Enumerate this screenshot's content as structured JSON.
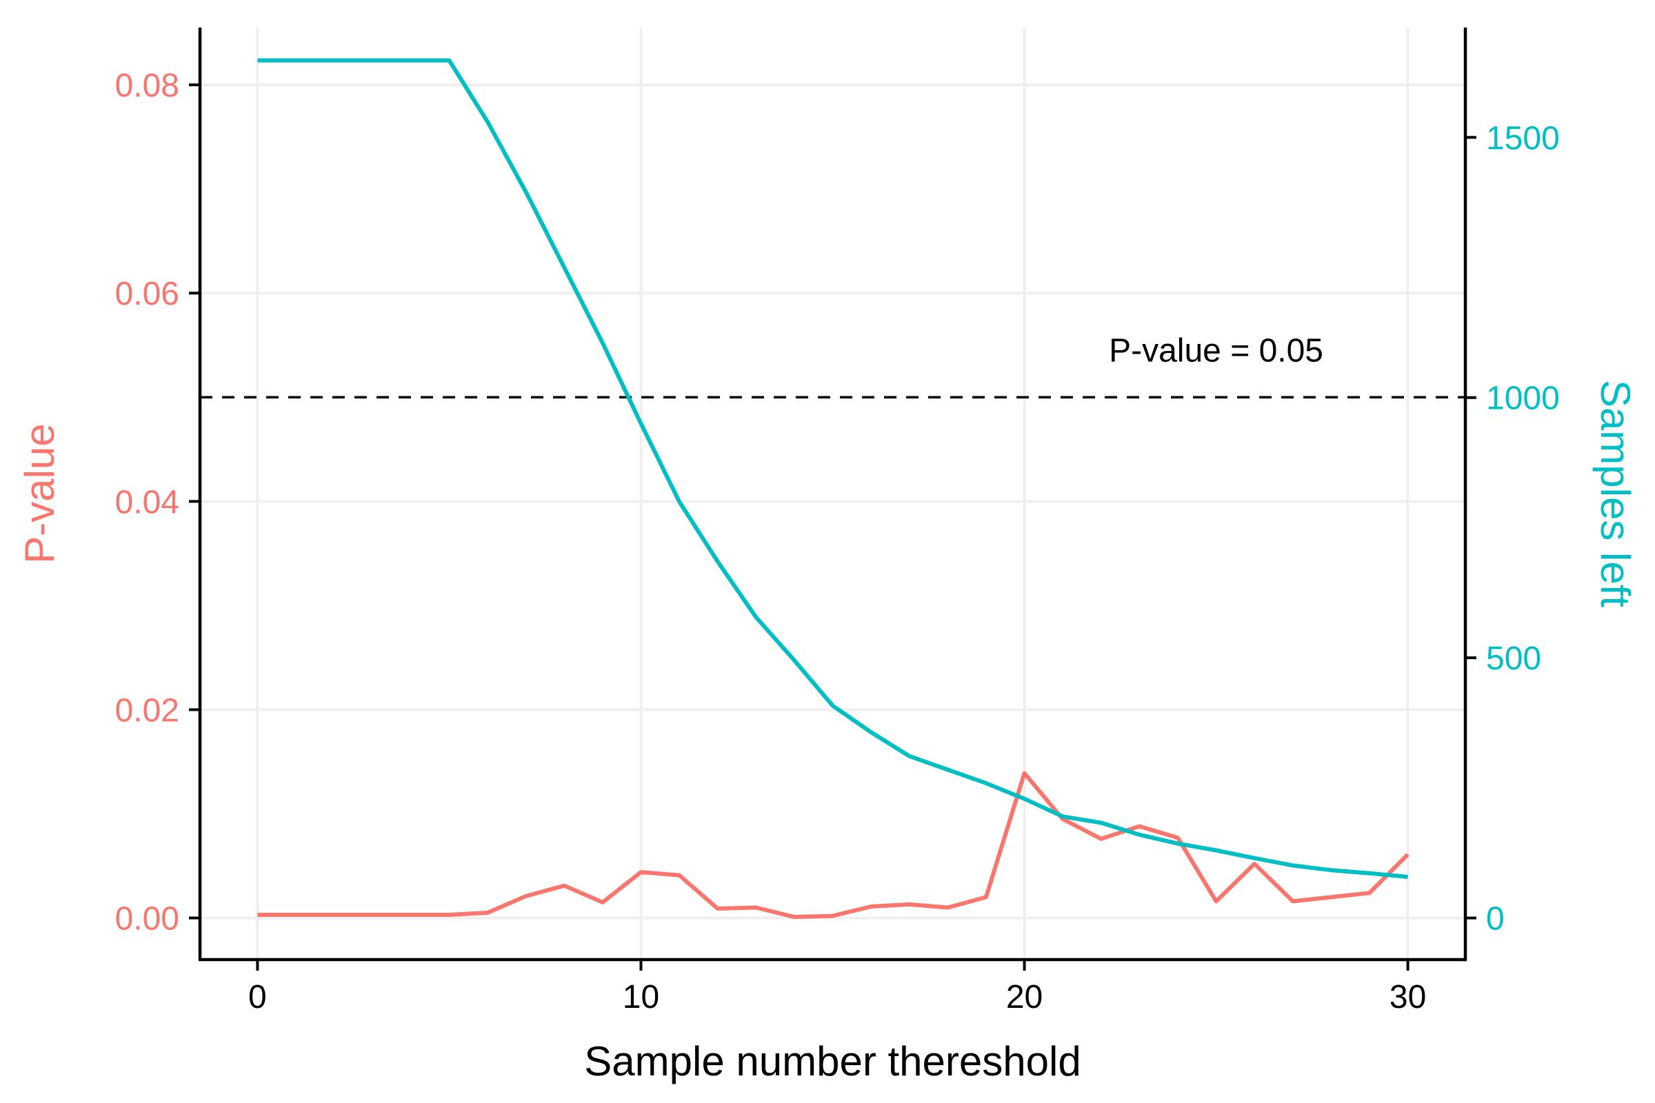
{
  "chart_data": {
    "type": "line",
    "title": "",
    "xlabel": "Sample number thereshold",
    "ylabel": "P-value",
    "y2label": "Samples left",
    "xlim": [
      -1.5,
      31.5
    ],
    "ylim": [
      -0.004,
      0.0855
    ],
    "y2lim": [
      -80,
      1711
    ],
    "x_ticks": [
      0,
      10,
      20,
      30
    ],
    "y_ticks": [
      0.0,
      0.02,
      0.04,
      0.06,
      0.08
    ],
    "y_tick_labels": [
      "0.00",
      "0.02",
      "0.04",
      "0.06",
      "0.08"
    ],
    "y2_ticks": [
      0,
      500,
      1000,
      1500
    ],
    "y2_tick_labels": [
      "0",
      "500",
      "1000",
      "1500"
    ],
    "grid": true,
    "x": [
      0,
      1,
      2,
      3,
      4,
      5,
      6,
      7,
      8,
      9,
      10,
      11,
      12,
      13,
      14,
      15,
      16,
      17,
      18,
      19,
      20,
      21,
      22,
      23,
      24,
      25,
      26,
      27,
      28,
      29,
      30
    ],
    "series": [
      {
        "name": "P-value",
        "axis": "left",
        "color": "#F8766D",
        "values": [
          0.0003,
          0.0003,
          0.0003,
          0.0003,
          0.0003,
          0.0003,
          0.0005,
          0.0021,
          0.0031,
          0.0015,
          0.0044,
          0.0041,
          0.0009,
          0.001,
          0.0001,
          0.0002,
          0.0011,
          0.0013,
          0.001,
          0.002,
          0.0139,
          0.0095,
          0.0076,
          0.0088,
          0.0077,
          0.0016,
          0.0052,
          0.0016,
          0.002,
          0.0024,
          0.0061
        ]
      },
      {
        "name": "Samples left",
        "axis": "right",
        "color": "#00BFC4",
        "values": [
          1648,
          1648,
          1648,
          1648,
          1648,
          1648,
          1530,
          1395,
          1250,
          1105,
          950,
          800,
          685,
          578,
          495,
          408,
          357,
          311,
          285,
          259,
          229,
          195,
          183,
          160,
          143,
          130,
          115,
          101,
          92,
          86,
          79
        ]
      }
    ],
    "reference_lines": [
      {
        "axis": "left",
        "y": 0.05,
        "style": "dashed",
        "color": "#000000",
        "label": "P-value = 0.05",
        "label_x": 25
      }
    ]
  }
}
